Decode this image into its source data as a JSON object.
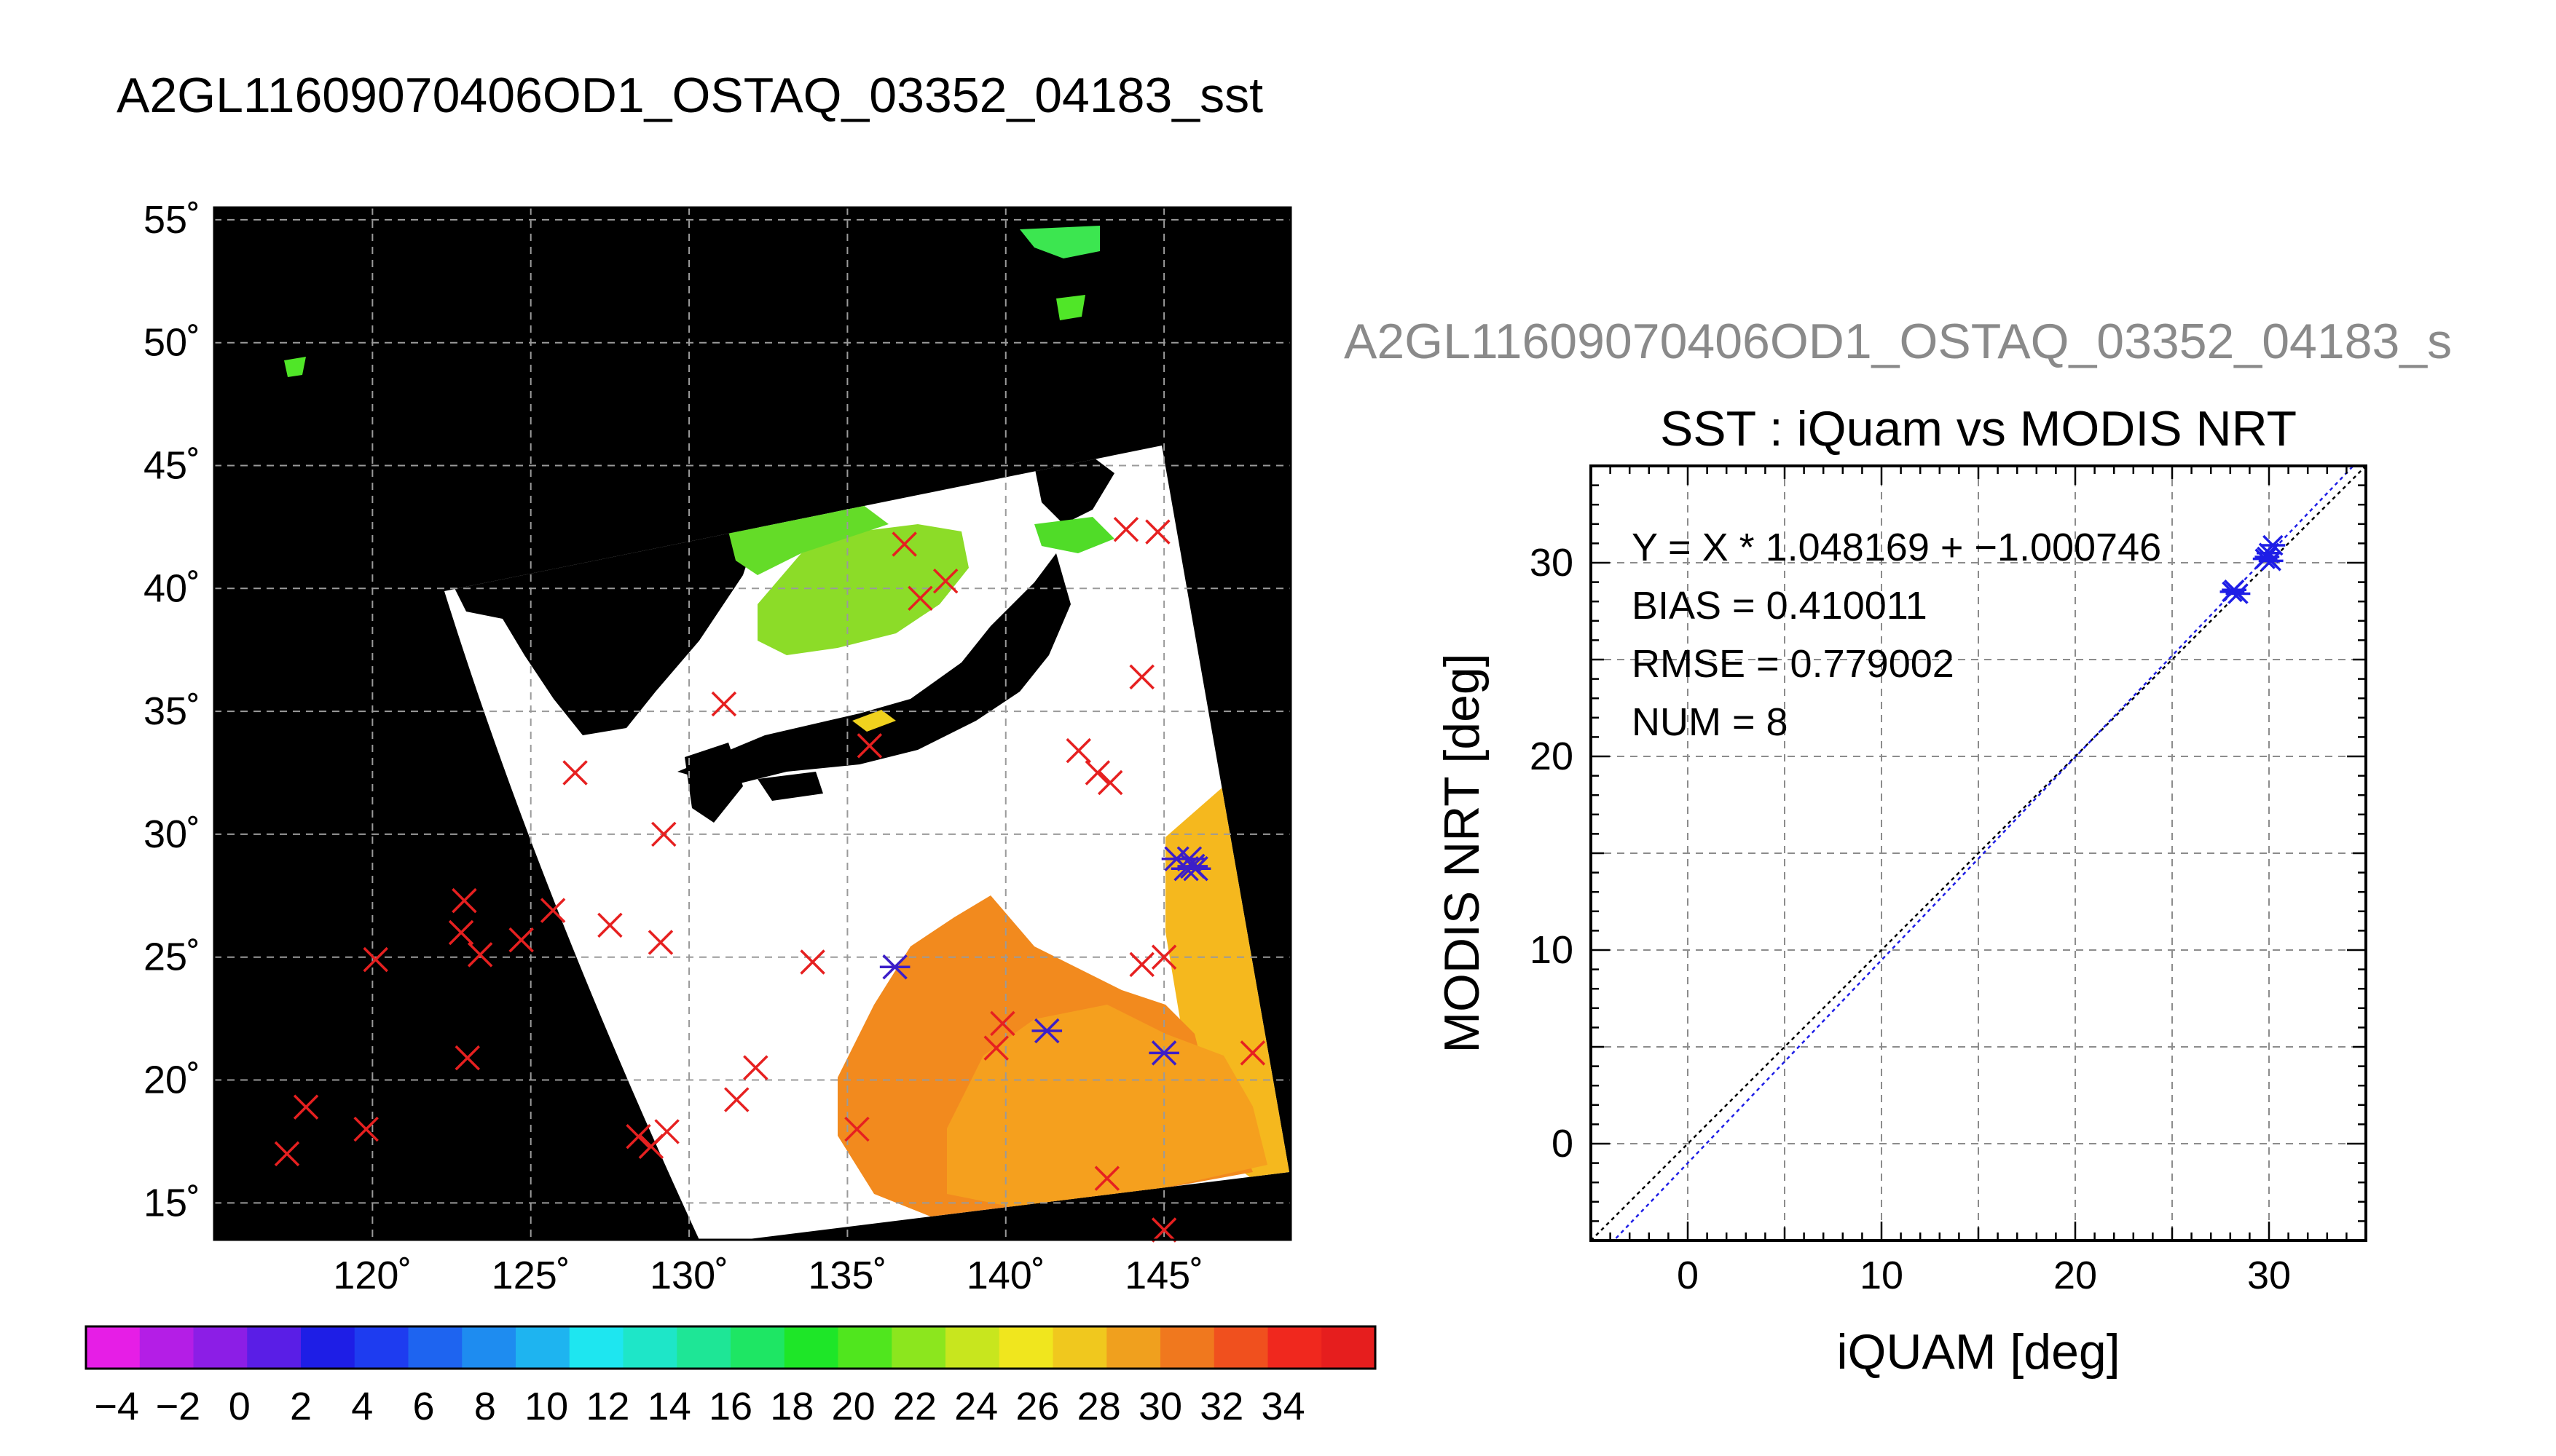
{
  "page": {
    "title": "A2GL11609070406OD1_OSTAQ_03352_04183_sst",
    "secondary_title": "A2GL11609070406OD1_OSTAQ_03352_04183_s"
  },
  "map_panel": {
    "lat_ticks": [
      "55˚",
      "50˚",
      "45˚",
      "40˚",
      "35˚",
      "30˚",
      "25˚",
      "20˚",
      "15˚"
    ],
    "lon_ticks": [
      "120˚",
      "125˚",
      "130˚",
      "135˚",
      "140˚",
      "145˚"
    ],
    "colorbar_ticks": [
      "−4",
      "−2",
      "0",
      "2",
      "4",
      "6",
      "8",
      "10",
      "12",
      "14",
      "16",
      "18",
      "20",
      "22",
      "24",
      "26",
      "28",
      "30",
      "32",
      "34"
    ],
    "colorbar_colors": [
      "#e61ee6",
      "#b41ee6",
      "#8c1ee6",
      "#5a1ee6",
      "#1e1ee6",
      "#1e3cf0",
      "#1e64f0",
      "#1e8cf0",
      "#1eb4f0",
      "#1ee6f0",
      "#1ee6c8",
      "#1ee696",
      "#1ee664",
      "#1ee628",
      "#50e61e",
      "#8ce61e",
      "#c8e61e",
      "#f0e61e",
      "#f0c81e",
      "#f0a01e",
      "#f0781e",
      "#f0501e",
      "#f0281e",
      "#e61e1e"
    ],
    "red_markers": [
      [
        117.3,
        17
      ],
      [
        117.9,
        18.9
      ],
      [
        119.8,
        18
      ],
      [
        120.1,
        24.9
      ],
      [
        122.9,
        27.3
      ],
      [
        122.8,
        26
      ],
      [
        123.4,
        25.1
      ],
      [
        124.7,
        25.7
      ],
      [
        125.7,
        26.9
      ],
      [
        127.5,
        26.3
      ],
      [
        123,
        20.9
      ],
      [
        128.4,
        17.7
      ],
      [
        128.8,
        17.3
      ],
      [
        129.3,
        17.9
      ],
      [
        129.1,
        25.6
      ],
      [
        129.2,
        30
      ],
      [
        126.4,
        32.5
      ],
      [
        131.1,
        35.3
      ],
      [
        131.5,
        19.2
      ],
      [
        132.1,
        20.5
      ],
      [
        133.9,
        24.8
      ],
      [
        135.3,
        18
      ],
      [
        135.7,
        33.6
      ],
      [
        136.8,
        41.8
      ],
      [
        137.3,
        39.6
      ],
      [
        138.1,
        40.3
      ],
      [
        139.7,
        21.3
      ],
      [
        139.9,
        22.3
      ],
      [
        142.3,
        33.4
      ],
      [
        142.9,
        32.5
      ],
      [
        143.3,
        32.1
      ],
      [
        143.2,
        16
      ],
      [
        143.8,
        42.4
      ],
      [
        144.8,
        42.3
      ],
      [
        144.3,
        36.4
      ],
      [
        144.3,
        24.7
      ],
      [
        145,
        25
      ],
      [
        145,
        13.9
      ],
      [
        147.8,
        21.1
      ]
    ],
    "blue_markers": [
      [
        136.5,
        24.6
      ],
      [
        141.3,
        22
      ],
      [
        145,
        21.1
      ],
      [
        145.4,
        29
      ],
      [
        145.8,
        29
      ],
      [
        145.7,
        28.6
      ],
      [
        145.9,
        28.7
      ],
      [
        146,
        28.6
      ]
    ]
  },
  "chart_data": {
    "type": "scatter",
    "title": "SST : iQuam vs MODIS NRT",
    "xlabel": "iQUAM [deg]",
    "ylabel": "MODIS NRT [deg]",
    "xlim": [
      -5,
      35
    ],
    "ylim": [
      -5,
      35
    ],
    "xticks": [
      0,
      10,
      20,
      30
    ],
    "yticks": [
      0,
      10,
      20,
      30
    ],
    "grid": true,
    "series": [
      {
        "values": [
          [
            28.1,
            28.5
          ],
          [
            28.4,
            28.4
          ],
          [
            28.2,
            28.6
          ],
          [
            29.8,
            30.2
          ],
          [
            30.0,
            30.5
          ],
          [
            30.1,
            30.1
          ],
          [
            29.9,
            30.3
          ],
          [
            30.2,
            30.9
          ]
        ]
      }
    ],
    "lines": [
      {
        "type": "identity",
        "slope": 1.0,
        "intercept": 0.0,
        "color": "#000000"
      },
      {
        "type": "fit",
        "slope": 1.048169,
        "intercept": -1.000746,
        "color": "#1e1ee6"
      }
    ],
    "annotations": [
      "Y = X * 1.048169 + −1.000746",
      "BIAS = 0.410011",
      "RMSE = 0.779002",
      "NUM = 8"
    ]
  }
}
